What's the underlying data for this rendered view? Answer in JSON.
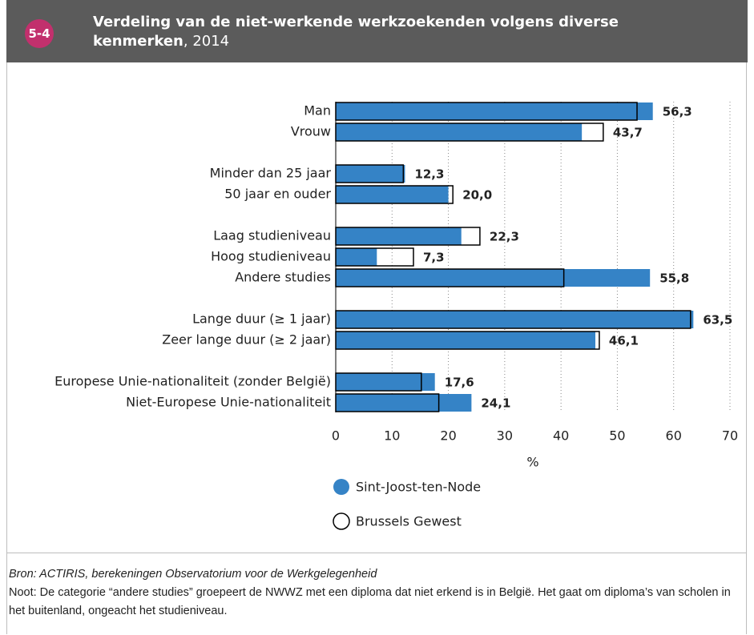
{
  "header": {
    "number": "5-4",
    "title": "Verdeling van de niet-werkende werkzoekenden volgens diverse kenmerken",
    "year": ", 2014"
  },
  "chart_data": {
    "type": "hbar",
    "categories": [
      "Man",
      "Vrouw",
      null,
      "Minder dan 25 jaar",
      "50 jaar en ouder",
      null,
      "Laag studieniveau",
      "Hoog studieniveau",
      "Andere studies",
      null,
      "Lange duur (≥ 1 jaar)",
      "Zeer lange duur (≥ 2 jaar)",
      null,
      "Europese Unie-nationaliteit (zonder België)",
      "Niet-Europese Unie-nationaliteit"
    ],
    "series": [
      {
        "name": "Sint-Joost-ten-Node",
        "color": "#3583c6",
        "style": "filled",
        "values": [
          56.3,
          43.7,
          null,
          12.3,
          20.0,
          null,
          22.3,
          7.3,
          55.8,
          null,
          63.5,
          46.1,
          null,
          17.6,
          24.1
        ],
        "value_labels": [
          "56,3",
          "43,7",
          null,
          "12,3",
          "20,0",
          null,
          "22,3",
          "7,3",
          "55,8",
          null,
          "63,5",
          "46,1",
          null,
          "17,6",
          "24,1"
        ]
      },
      {
        "name": "Brussels Gewest",
        "color": "#000000",
        "style": "outline",
        "values": [
          53.5,
          47.5,
          null,
          12.0,
          20.8,
          null,
          25.6,
          13.8,
          40.5,
          null,
          63.0,
          46.8,
          null,
          15.2,
          18.3
        ]
      }
    ],
    "label_color": "#2f7fc1",
    "xlim": [
      0,
      70
    ],
    "xticks": [
      0,
      10,
      20,
      30,
      40,
      50,
      60,
      70
    ],
    "xlabel": "%",
    "grid": true
  },
  "footer": {
    "source": "Bron: ACTIRIS, berekeningen Observatorium voor de Werkgelegenheid",
    "note": "Noot: De categorie “andere studies” groepeert de NWWZ met een diploma dat niet erkend is in België. Het gaat om diploma’s van scholen in het buitenland, ongeacht het studieniveau."
  }
}
